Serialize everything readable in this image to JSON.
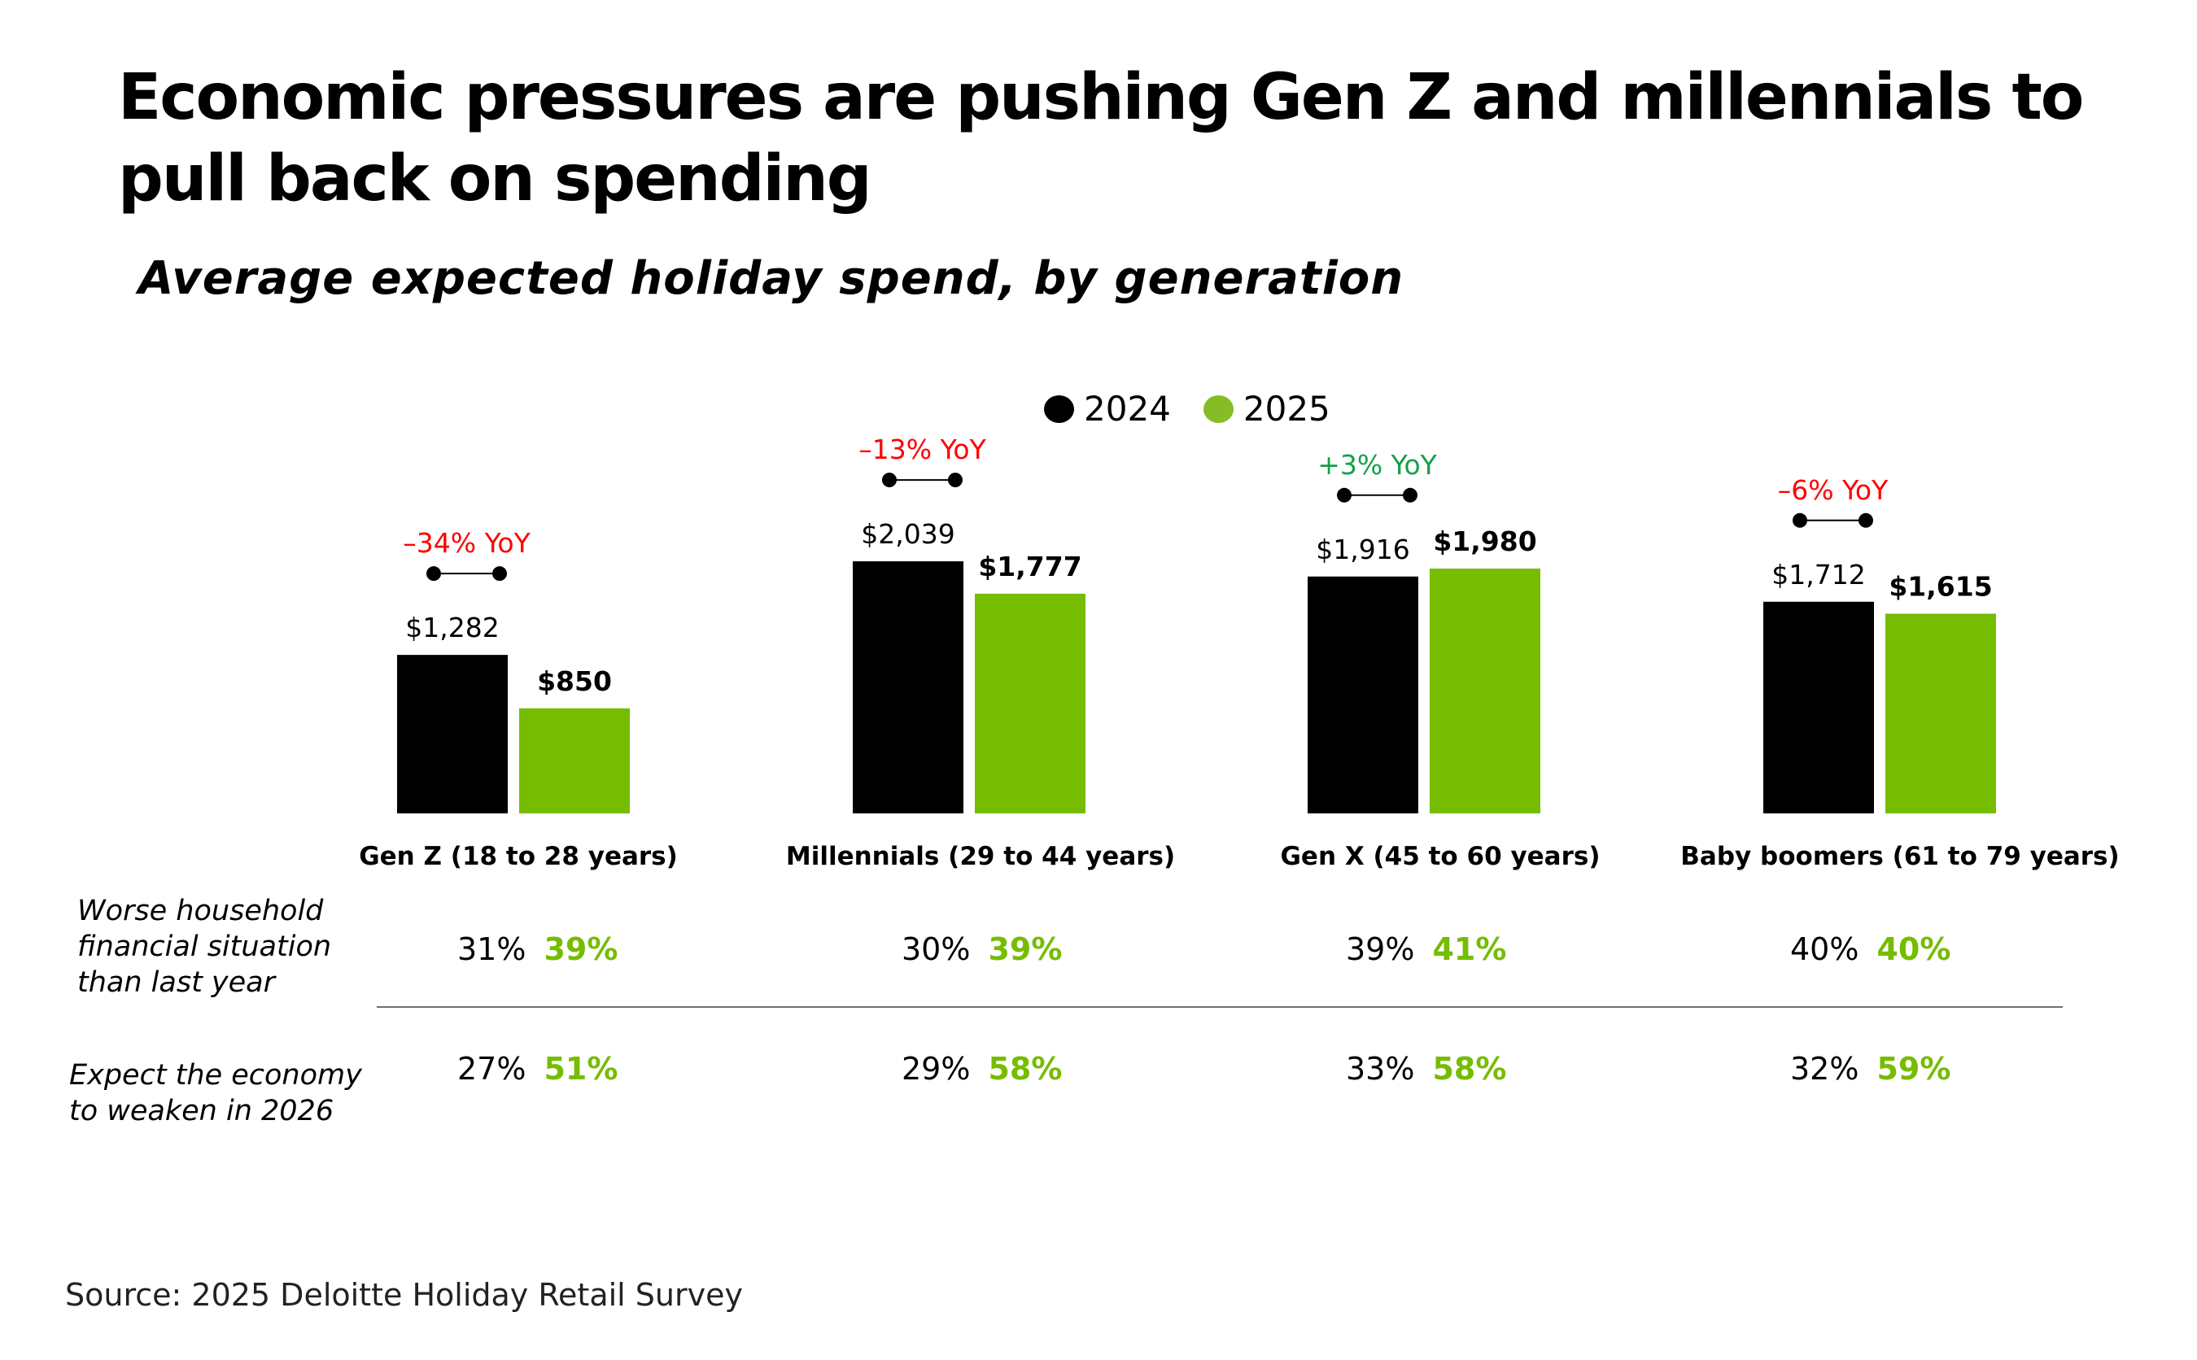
{
  "title": "Economic pressures are pushing Gen Z and millennials to pull back on spending",
  "subtitle": "Average expected holiday spend, by generation",
  "legend": [
    {
      "label": "2024",
      "color": "#000000"
    },
    {
      "label": "2025",
      "color": "#86BC25"
    }
  ],
  "colors": {
    "bar_2024": "#000000",
    "bar_2025": "#76BC00",
    "yoy_negative": "#FF0000",
    "yoy_positive": "#13A14A",
    "pct_2025": "#76BC00"
  },
  "chart_data": {
    "type": "bar",
    "title": "Average expected holiday spend, by generation",
    "xlabel": "",
    "ylabel": "",
    "categories": [
      "Gen Z (18 to 28 years)",
      "Millennials (29 to 44 years)",
      "Gen X (45 to 60 years)",
      "Baby boomers (61 to 79 years)"
    ],
    "series": [
      {
        "name": "2024",
        "values": [
          1282,
          2039,
          1916,
          1712
        ],
        "labels": [
          "$1,282",
          "$2,039",
          "$1,916",
          "$1,712"
        ]
      },
      {
        "name": "2025",
        "values": [
          850,
          1777,
          1980,
          1615
        ],
        "labels": [
          "$850",
          "$1,777",
          "$1,980",
          "$1,615"
        ]
      }
    ],
    "yoy": [
      {
        "label": "–34% YoY",
        "direction": "negative"
      },
      {
        "label": "–13% YoY",
        "direction": "negative"
      },
      {
        "label": "+3% YoY",
        "direction": "positive"
      },
      {
        "label": "–6% YoY",
        "direction": "negative"
      }
    ],
    "ylim": [
      0,
      2100
    ],
    "grid": false,
    "legend_position": "top-center"
  },
  "table": {
    "rows": [
      {
        "label": "Worse household financial situation than last year",
        "label_lines": [
          "Worse household",
          "financial situation",
          "than last year"
        ],
        "values": [
          {
            "y2024": "31%",
            "y2025": "39%"
          },
          {
            "y2024": "30%",
            "y2025": "39%"
          },
          {
            "y2024": "39%",
            "y2025": "41%"
          },
          {
            "y2024": "40%",
            "y2025": "40%"
          }
        ]
      },
      {
        "label": "Expect the economy to weaken in 2026",
        "label_lines": [
          "Expect the economy",
          "to weaken in 2026"
        ],
        "values": [
          {
            "y2024": "27%",
            "y2025": "51%"
          },
          {
            "y2024": "29%",
            "y2025": "58%"
          },
          {
            "y2024": "33%",
            "y2025": "58%"
          },
          {
            "y2024": "32%",
            "y2025": "59%"
          }
        ]
      }
    ]
  },
  "source": "Source: 2025 Deloitte Holiday Retail Survey"
}
